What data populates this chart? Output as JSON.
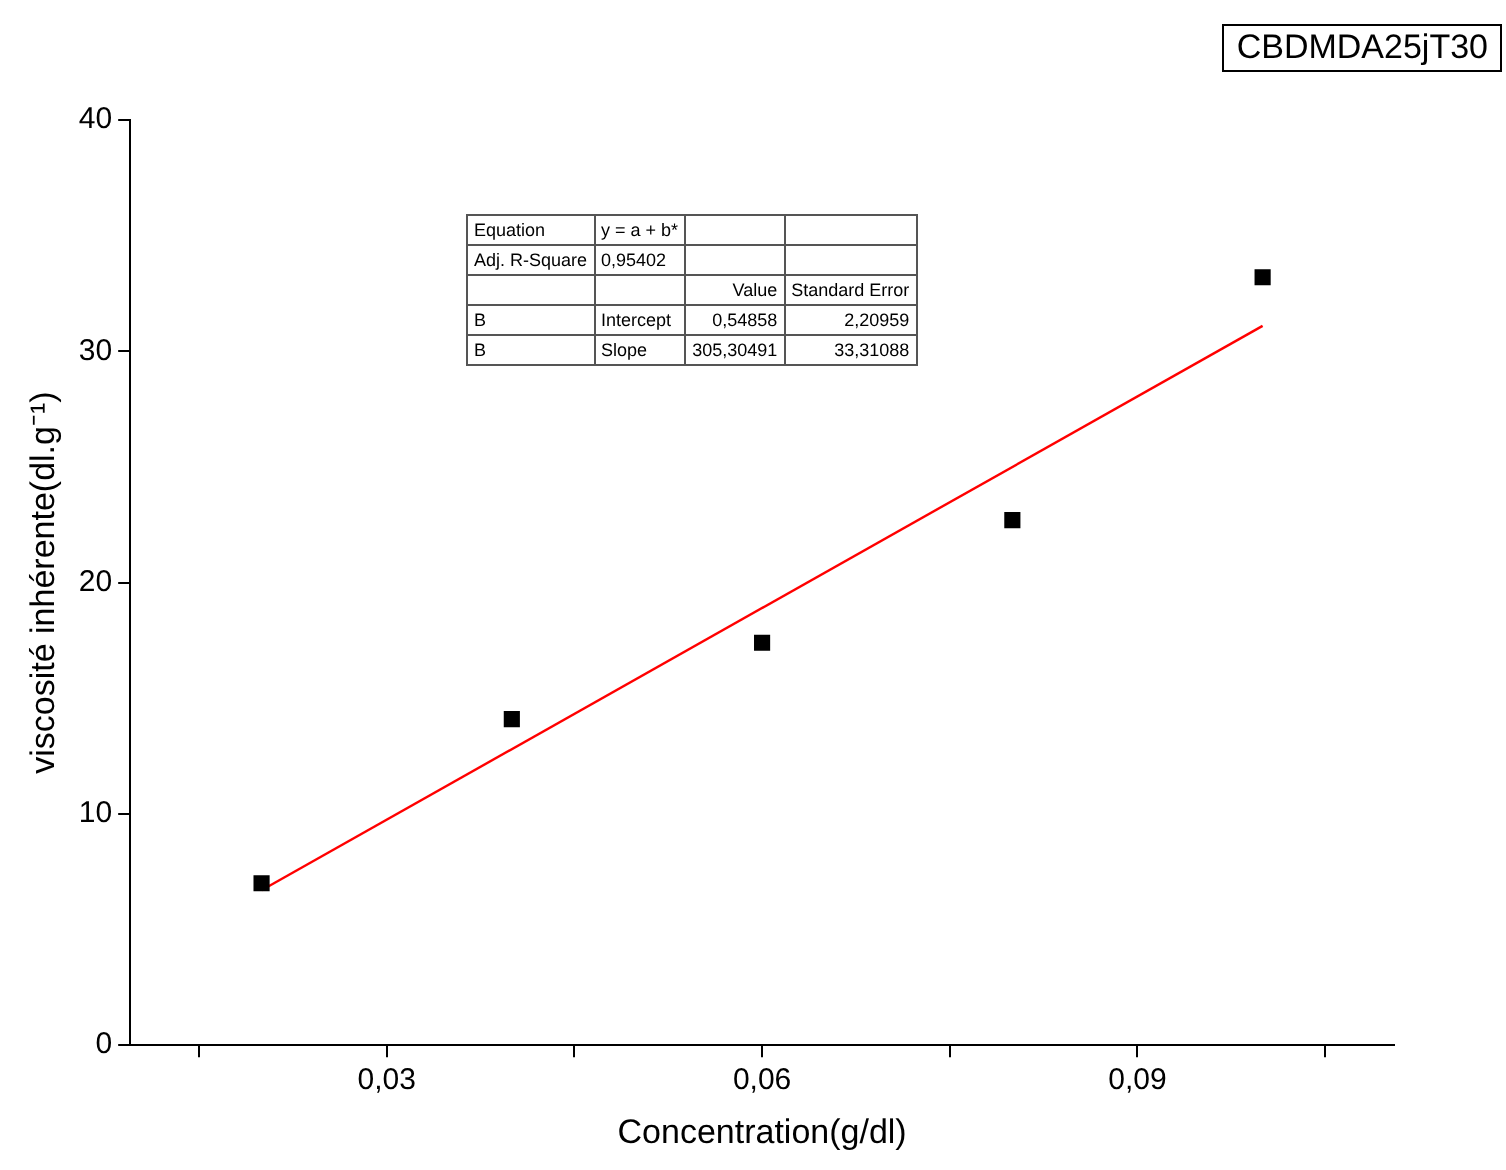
{
  "chart_data": {
    "type": "scatter",
    "title": "CBDMDA25jT30",
    "xlabel": "Concentration(g/dl)",
    "ylabel": "viscosité inhérente(dl.g⁻¹)",
    "x": [
      0.02,
      0.04,
      0.06,
      0.08,
      0.1
    ],
    "series": [
      {
        "color": "#000000",
        "values": [
          7.0,
          14.1,
          17.4,
          22.7,
          33.2
        ]
      },
      {
        "type": "line",
        "color": "#ff0000",
        "x": [
          0.02,
          0.1
        ],
        "values": [
          6.7,
          31.1
        ],
        "marker": "none"
      }
    ],
    "marker": "square",
    "grid": false,
    "legend": false,
    "xlim": [
      0.0095,
      0.1105
    ],
    "xticks": [
      {
        "value": 0.015,
        "label": null
      },
      {
        "value": 0.03,
        "label": "0,03"
      },
      {
        "value": 0.045,
        "label": null
      },
      {
        "value": 0.06,
        "label": "0,06"
      },
      {
        "value": 0.075,
        "label": null
      },
      {
        "value": 0.09,
        "label": "0,09"
      },
      {
        "value": 0.105,
        "label": null
      }
    ],
    "ylim": [
      0,
      40
    ],
    "yticks": [
      0,
      10,
      20,
      30,
      40
    ],
    "annotations": [
      "Equation",
      "y = a + b*",
      "Adj. R-Square",
      "0,95402",
      "Value",
      "Standard Error",
      "B",
      "Intercept",
      "0,54858",
      "2,20959",
      "B",
      "Slope",
      "305,30491",
      "33,31088"
    ]
  }
}
